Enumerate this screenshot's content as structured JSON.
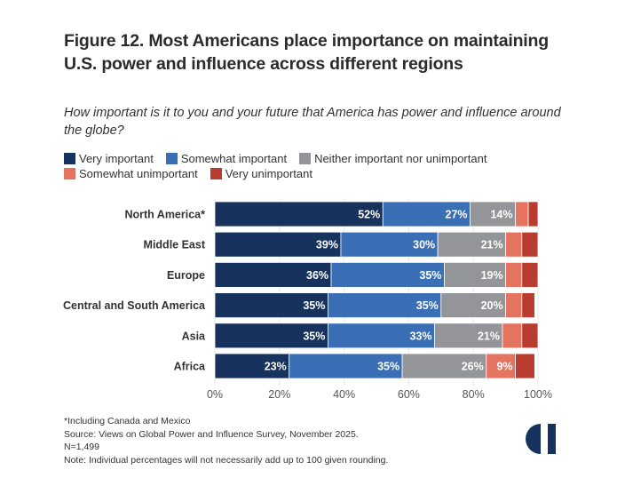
{
  "title": "Figure 12. Most Americans place importance on maintaining U.S. power and influence across different regions",
  "subtitle": "How important is it to you and your future that America has power and influence around the globe?",
  "legend": [
    {
      "label": "Very important",
      "color": "#17325c"
    },
    {
      "label": "Somewhat important",
      "color": "#3a6fb5"
    },
    {
      "label": "Neither important nor unimportant",
      "color": "#939598"
    },
    {
      "label": "Somewhat unimportant",
      "color": "#e4735f"
    },
    {
      "label": "Very unimportant",
      "color": "#b83c30"
    }
  ],
  "chart_data": {
    "type": "bar",
    "orientation": "horizontal",
    "stacked": true,
    "title": "Figure 12. Most Americans place importance on maintaining U.S. power and influence across different regions",
    "subtitle": "How important is it to you and your future that America has power and influence around the globe?",
    "categories": [
      "North America*",
      "Middle East",
      "Europe",
      "Central and South America",
      "Asia",
      "Africa"
    ],
    "series": [
      {
        "name": "Very important",
        "color": "#17325c",
        "values": [
          52,
          39,
          36,
          35,
          35,
          23
        ],
        "labels": [
          "52%",
          "39%",
          "36%",
          "35%",
          "35%",
          "23%"
        ]
      },
      {
        "name": "Somewhat important",
        "color": "#3a6fb5",
        "values": [
          27,
          30,
          35,
          35,
          33,
          35
        ],
        "labels": [
          "27%",
          "30%",
          "35%",
          "35%",
          "33%",
          "35%"
        ]
      },
      {
        "name": "Neither important nor unimportant",
        "color": "#939598",
        "values": [
          14,
          21,
          19,
          20,
          21,
          26
        ],
        "labels": [
          "14%",
          "21%",
          "19%",
          "20%",
          "21%",
          "26%"
        ]
      },
      {
        "name": "Somewhat unimportant",
        "color": "#e4735f",
        "values": [
          4,
          5,
          5,
          5,
          6,
          9
        ],
        "labels": [
          "",
          "",
          "",
          "",
          "",
          "9%"
        ]
      },
      {
        "name": "Very unimportant",
        "color": "#b83c30",
        "values": [
          3,
          5,
          5,
          4,
          5,
          6
        ],
        "labels": [
          "",
          "",
          "",
          "",
          "",
          ""
        ]
      }
    ],
    "xlim": [
      0,
      100
    ],
    "xticks": [
      "0%",
      "20%",
      "40%",
      "60%",
      "80%",
      "100%"
    ],
    "xlabel": "",
    "ylabel": "",
    "grid": true,
    "legend_position": "top-left"
  },
  "footer": {
    "note1": "*Including Canada and Mexico",
    "source": "Source: Views on Global Power and Influence Survey, November 2025.",
    "n": "N=1,499",
    "note2": "Note: Individual percentages will not necessarily add up to 100 given rounding."
  },
  "logo": {
    "icon": "half-circle-logo-icon",
    "color": "#17325c"
  }
}
